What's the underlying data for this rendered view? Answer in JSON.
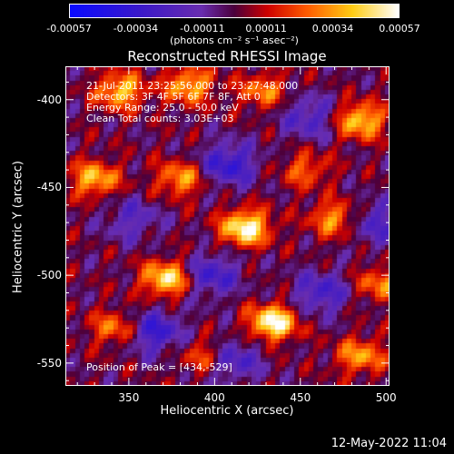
{
  "chart_data": {
    "type": "heatmap",
    "title": "Reconstructed RHESSI Image",
    "xlabel": "Heliocentric X (arcsec)",
    "ylabel": "Heliocentric Y (arcsec)",
    "xlim": [
      313,
      502
    ],
    "ylim": [
      -563,
      -381
    ],
    "x_ticks": [
      350,
      400,
      450,
      500
    ],
    "y_ticks": [
      -400,
      -450,
      -500,
      -550
    ],
    "colorbar": {
      "ticks": [
        "-0.00057",
        "-0.00034",
        "-0.00011",
        "0.00011",
        "0.00034",
        "0.00057"
      ],
      "units": "(photons cm⁻² s⁻¹ asec⁻²)",
      "range": [
        -0.00057,
        0.00057
      ]
    },
    "annotations": {
      "time": "21-Jul-2011 23:25:56.000 to 23:27:48.000",
      "detectors": "Detectors: 3F 4F 5F 6F 7F 8F, Att 0",
      "energy": "Energy Range: 25.0 - 50.0 keV",
      "clean": "Clean     Total counts: 3.03E+03",
      "peak": "Position of Peak = [434,-529]"
    },
    "peak": {
      "x": 434,
      "y": -529
    },
    "bright_regions": [
      {
        "x": 418,
        "y": -473,
        "value": 0.00057
      },
      {
        "x": 434,
        "y": -527,
        "value": 0.00057
      },
      {
        "x": 372,
        "y": -502,
        "value": 0.0005
      },
      {
        "x": 485,
        "y": -412,
        "value": 0.00045
      },
      {
        "x": 345,
        "y": -395,
        "value": 0.00042
      },
      {
        "x": 385,
        "y": -392,
        "value": 0.0004
      },
      {
        "x": 330,
        "y": -445,
        "value": 0.0004
      },
      {
        "x": 380,
        "y": -445,
        "value": 0.00035
      },
      {
        "x": 470,
        "y": -468,
        "value": 0.00035
      },
      {
        "x": 485,
        "y": -546,
        "value": 0.00035
      },
      {
        "x": 428,
        "y": -395,
        "value": 0.0003
      },
      {
        "x": 342,
        "y": -530,
        "value": 0.0003
      },
      {
        "x": 497,
        "y": -505,
        "value": 0.0003
      },
      {
        "x": 395,
        "y": -546,
        "value": 0.00028
      },
      {
        "x": 453,
        "y": -440,
        "value": 0.00025
      }
    ],
    "dark_regions": [
      {
        "x": 408,
        "y": -437,
        "value": -0.00035
      },
      {
        "x": 365,
        "y": -532,
        "value": -0.00034
      },
      {
        "x": 410,
        "y": -548,
        "value": -0.0003
      },
      {
        "x": 398,
        "y": -500,
        "value": -0.0003
      },
      {
        "x": 462,
        "y": -510,
        "value": -0.00028
      },
      {
        "x": 455,
        "y": -410,
        "value": -0.00025
      },
      {
        "x": 493,
        "y": -470,
        "value": -0.00025
      },
      {
        "x": 352,
        "y": -468,
        "value": -0.0002
      }
    ]
  },
  "footer": "12-May-2022 11:04"
}
